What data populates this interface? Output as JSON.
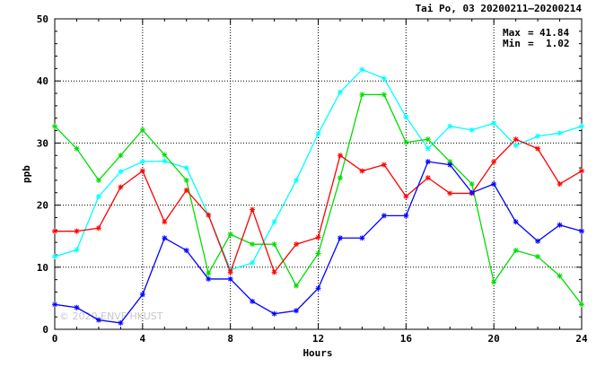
{
  "chart_data": {
    "type": "line",
    "title": "Tai Po, 03 20200211–20200214",
    "xlabel": "Hours",
    "ylabel": "ppb",
    "xlim": [
      0,
      24
    ],
    "ylim": [
      0,
      50
    ],
    "xticks": [
      0,
      4,
      8,
      12,
      16,
      20,
      24
    ],
    "yticks": [
      0,
      10,
      20,
      30,
      40,
      50
    ],
    "grid": true,
    "legend": "none",
    "x": [
      0,
      1,
      2,
      3,
      4,
      5,
      6,
      7,
      8,
      9,
      10,
      11,
      12,
      13,
      14,
      15,
      16,
      17,
      18,
      19,
      20,
      21,
      22,
      23,
      24
    ],
    "annotations": [
      {
        "label": "Max",
        "eq": "=",
        "value": "41.84"
      },
      {
        "label": "Min",
        "eq": "=",
        "value": "1.02"
      }
    ],
    "watermark": "© 2020 ENVF HKUST",
    "series": [
      {
        "color": "#00ffff",
        "values": [
          11.7,
          12.8,
          21.4,
          25.4,
          27.0,
          27.1,
          26.0,
          18.4,
          9.6,
          10.7,
          17.3,
          24.0,
          31.5,
          38.2,
          41.84,
          40.4,
          34.2,
          29.1,
          32.7,
          32.1,
          33.2,
          29.6,
          31.1,
          31.6,
          32.7
        ]
      },
      {
        "color": "#00dd00",
        "values": [
          32.7,
          29.1,
          24.0,
          28.0,
          32.1,
          28.1,
          24.0,
          9.0,
          15.3,
          13.7,
          13.7,
          7.0,
          12.2,
          24.4,
          37.8,
          37.8,
          30.1,
          30.6,
          27.0,
          23.4,
          7.6,
          12.7,
          11.7,
          8.6,
          4.0
        ]
      },
      {
        "color": "#ff0000",
        "values": [
          15.8,
          15.8,
          16.3,
          22.9,
          25.5,
          17.3,
          22.4,
          18.4,
          9.2,
          19.3,
          9.2,
          13.7,
          14.8,
          28.0,
          25.5,
          26.5,
          21.4,
          24.4,
          21.9,
          21.9,
          27.0,
          30.6,
          29.1,
          23.4,
          25.5
        ]
      },
      {
        "color": "#0000ff",
        "values": [
          4.0,
          3.5,
          1.5,
          1.02,
          5.6,
          14.7,
          12.7,
          8.1,
          8.1,
          4.5,
          2.5,
          3.0,
          6.6,
          14.7,
          14.7,
          18.3,
          18.3,
          27.0,
          26.5,
          22.0,
          23.4,
          17.3,
          14.2,
          16.8,
          15.8
        ]
      }
    ]
  }
}
